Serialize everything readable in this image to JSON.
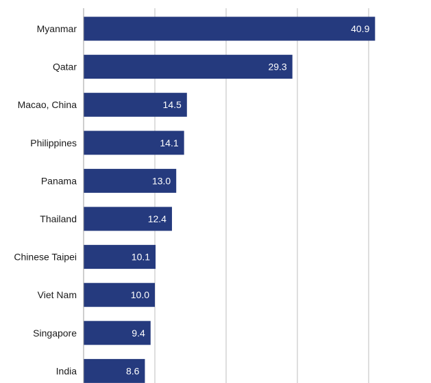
{
  "chart_data": {
    "type": "bar",
    "orientation": "horizontal",
    "title": "",
    "xlabel": "",
    "ylabel": "",
    "categories": [
      "Myanmar",
      "Qatar",
      "Macao, China",
      "Philippines",
      "Panama",
      "Thailand",
      "Chinese Taipei",
      "Viet Nam",
      "Singapore",
      "India"
    ],
    "values": [
      40.9,
      29.3,
      14.5,
      14.1,
      13.0,
      12.4,
      10.1,
      10.0,
      9.4,
      8.6
    ],
    "value_labels": [
      "40.9",
      "29.3",
      "14.5",
      "14.1",
      "13.0",
      "12.4",
      "10.1",
      "10.0",
      "9.4",
      "8.6"
    ],
    "xlim": [
      0,
      45
    ],
    "gridlines_at": [
      10,
      20,
      30,
      40
    ],
    "grid": true,
    "legend": "none",
    "bar_color": "#253A7E"
  }
}
